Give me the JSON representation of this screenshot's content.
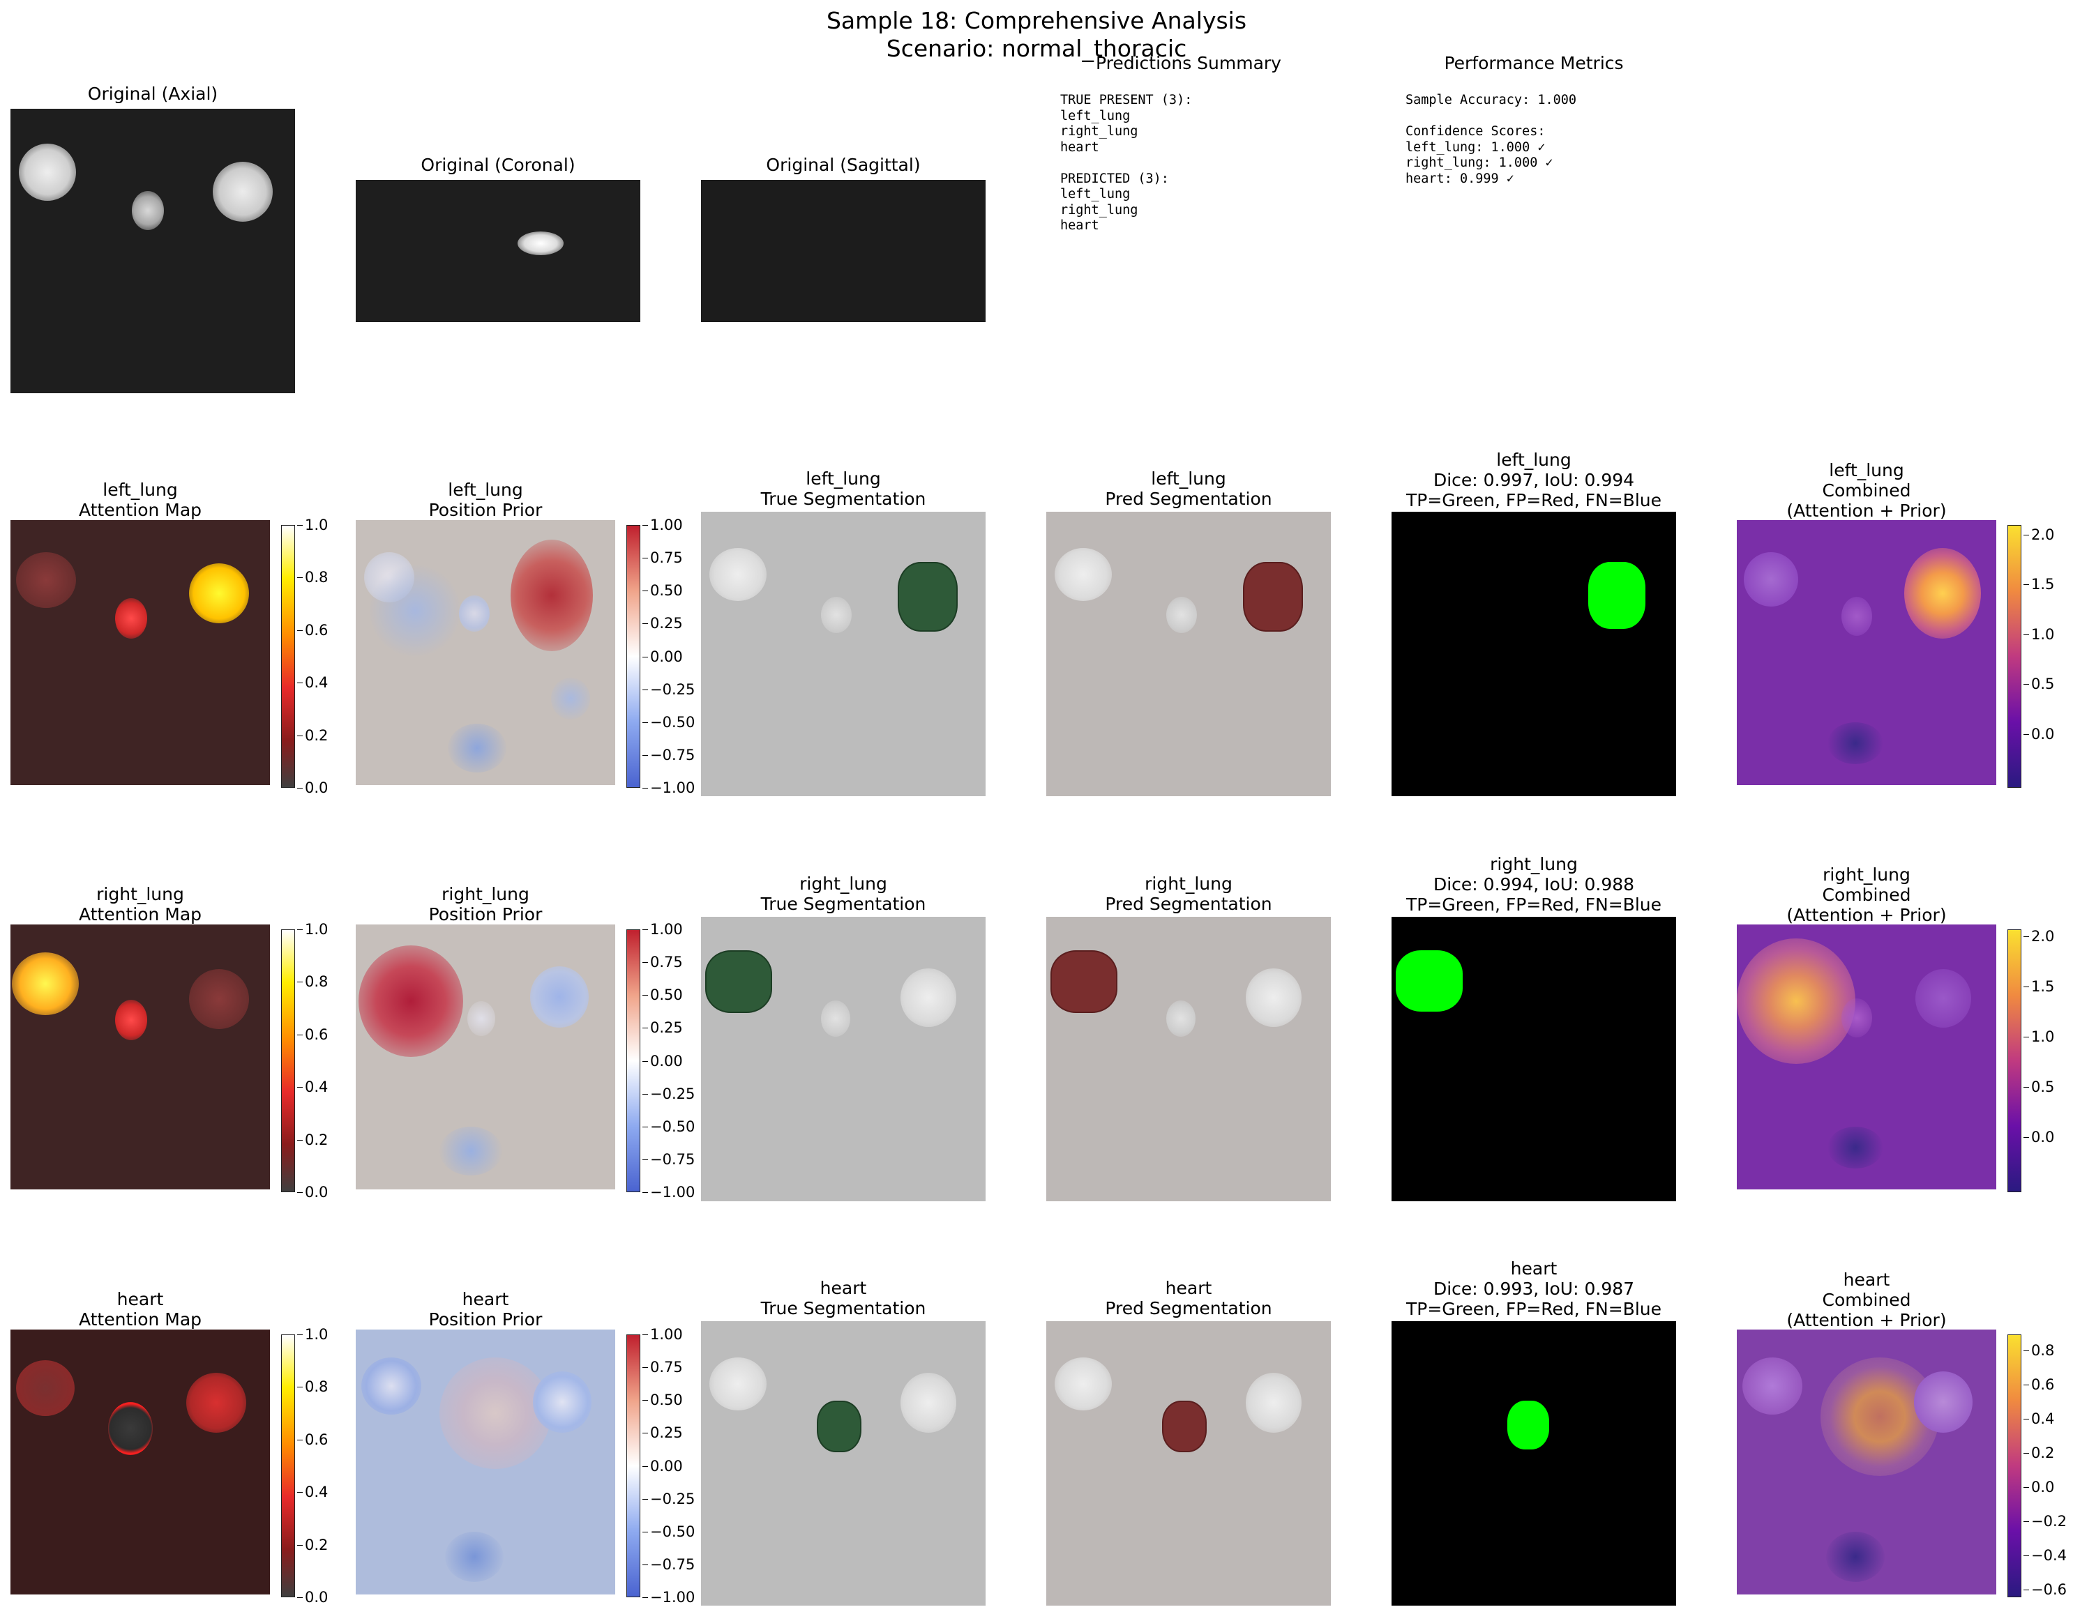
{
  "figure": {
    "title_line1": "Sample 18: Comprehensive Analysis",
    "title_line2": "Scenario: normal_thoracic"
  },
  "top_row": {
    "axial_title": "Original (Axial)",
    "coronal_title": "Original (Coronal)",
    "sagittal_title": "Original (Sagittal)",
    "summary_title": "Predictions Summary",
    "summary_text": "TRUE PRESENT (3):\nleft_lung\nright_lung\nheart\n\nPREDICTED (3):\nleft_lung\nright_lung\nheart",
    "metrics_title": "Performance Metrics",
    "metrics_text": "Sample Accuracy: 1.000\n\nConfidence Scores:\nleft_lung: 1.000 ✓\nright_lung: 1.000 ✓\nheart: 0.999 ✓"
  },
  "colorbars": {
    "attention_ticks": [
      "1.0",
      "0.8",
      "0.6",
      "0.4",
      "0.2",
      "0.0"
    ],
    "prior_ticks": [
      "1.00",
      "0.75",
      "0.50",
      "0.25",
      "0.00",
      "−0.25",
      "−0.50",
      "−0.75",
      "−1.00"
    ],
    "combined_lung_ticks": [
      "2.0",
      "1.5",
      "1.0",
      "0.5",
      "0.0"
    ],
    "combined_heart_ticks": [
      "0.8",
      "0.6",
      "0.4",
      "0.2",
      "0.0",
      "−0.2",
      "−0.4",
      "−0.6"
    ]
  },
  "organs": [
    {
      "attention_title": "left_lung\nAttention Map",
      "prior_title": "left_lung\nPosition Prior",
      "true_title": "left_lung\nTrue Segmentation",
      "pred_title": "left_lung\nPred Segmentation",
      "overlap_title": "left_lung\nDice: 0.997, IoU: 0.994\nTP=Green, FP=Red, FN=Blue",
      "combined_title": "left_lung\nCombined\n(Attention + Prior)"
    },
    {
      "attention_title": "right_lung\nAttention Map",
      "prior_title": "right_lung\nPosition Prior",
      "true_title": "right_lung\nTrue Segmentation",
      "pred_title": "right_lung\nPred Segmentation",
      "overlap_title": "right_lung\nDice: 0.994, IoU: 0.988\nTP=Green, FP=Red, FN=Blue",
      "combined_title": "right_lung\nCombined\n(Attention + Prior)"
    },
    {
      "attention_title": "heart\nAttention Map",
      "prior_title": "heart\nPosition Prior",
      "true_title": "heart\nTrue Segmentation",
      "pred_title": "heart\nPred Segmentation",
      "overlap_title": "heart\nDice: 0.993, IoU: 0.987\nTP=Green, FP=Red, FN=Blue",
      "combined_title": "heart\nCombined\n(Attention + Prior)"
    }
  ],
  "colors": {
    "tp_green": "#00ff00",
    "fp_red": "#ff0000",
    "fn_blue": "#0000ff",
    "true_seg": "#2e5a38",
    "pred_seg": "#7a2e2e"
  }
}
